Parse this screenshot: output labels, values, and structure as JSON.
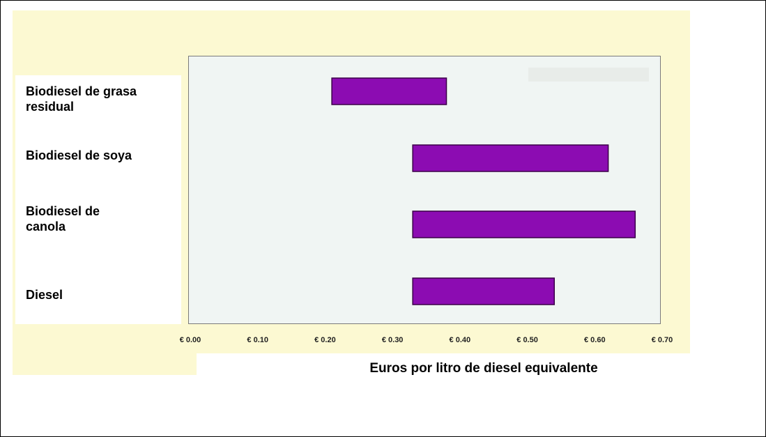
{
  "chart_data": {
    "type": "bar",
    "orientation": "horizontal",
    "style": "floating range bars",
    "categories": [
      "Biodiesel de grasa\nresidual",
      "Biodiesel de soya",
      "Biodiesel de\ncanola",
      "Diesel"
    ],
    "ranges": [
      [
        0.21,
        0.38
      ],
      [
        0.33,
        0.62
      ],
      [
        0.33,
        0.66
      ],
      [
        0.33,
        0.54
      ]
    ],
    "xlabel": "Euros por litro de diesel equivalente",
    "ylabel": "",
    "xlim": [
      0,
      0.7
    ],
    "xticks": [
      0,
      0.1,
      0.2,
      0.3,
      0.4,
      0.5,
      0.6,
      0.7
    ],
    "xtick_labels": [
      "€ 0.00",
      "€ 0.10",
      "€ 0.20",
      "€ 0.30",
      "€ 0.40",
      "€ 0.50",
      "€ 0.60",
      "€ 0.70"
    ],
    "grid": false,
    "legend": "none",
    "colors": {
      "bar_fill": "#8c0cb2",
      "bar_stroke": "#3b0048",
      "plot_bg": "#f0f5f3",
      "page_bg": "#fcf9d2"
    }
  }
}
